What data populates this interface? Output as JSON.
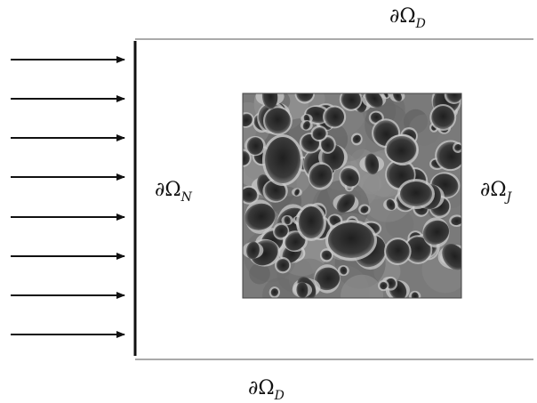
{
  "colors": {
    "line": "#111111",
    "boundary_thin": "#555555",
    "foam_dark": "#2b2b2b",
    "foam_mid": "#6b6b6b",
    "foam_light": "#c9c9c9"
  },
  "labels": {
    "top": {
      "symbol": "∂Ω",
      "sub": "D"
    },
    "bottom": {
      "symbol": "∂Ω",
      "sub": "D"
    },
    "left": {
      "symbol": "∂Ω",
      "sub": "N"
    },
    "right": {
      "symbol": "∂Ω",
      "sub": "J"
    }
  },
  "inflow_arrow_count": 8,
  "inclusion": {
    "icon": "porous-foam-microstructure-image"
  }
}
